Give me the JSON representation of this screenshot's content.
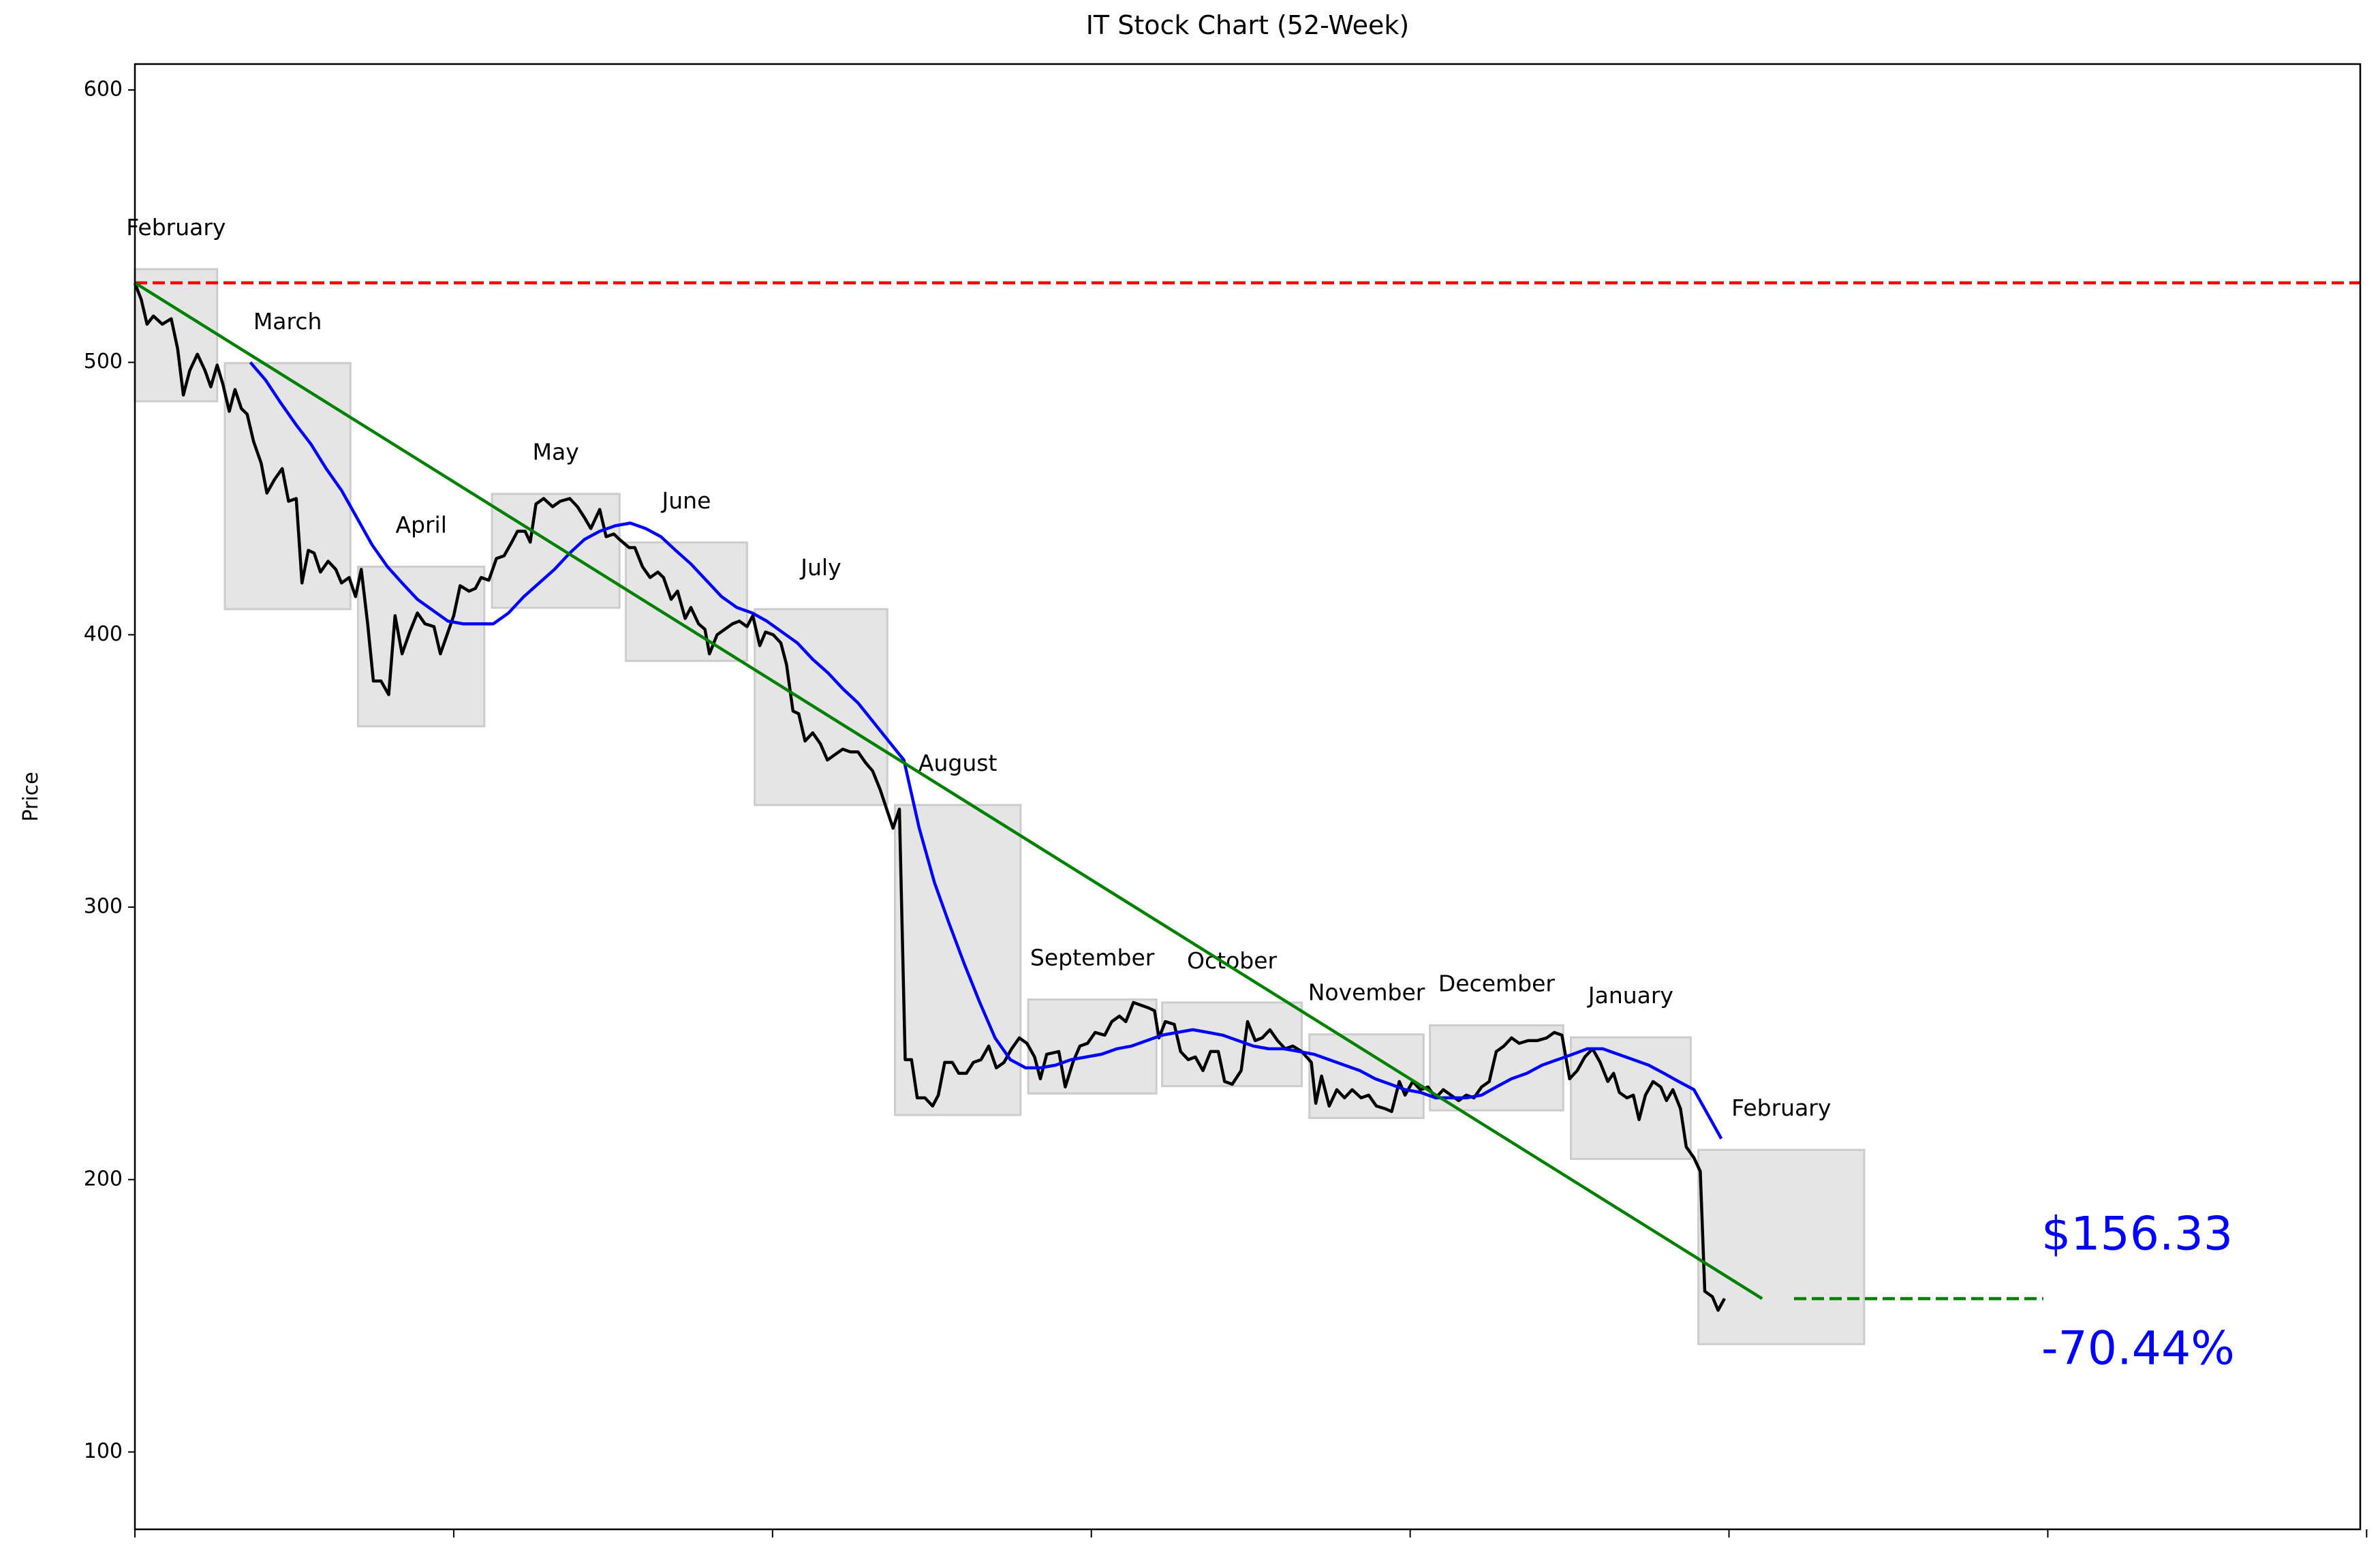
{
  "chart_data": {
    "type": "line",
    "title": "IT Stock Chart (52-Week)",
    "ylabel": "Price",
    "xlim": [
      0,
      349
    ],
    "ylim": [
      71.6,
      609.5
    ],
    "xticks": [
      0,
      50,
      100,
      150,
      200,
      250,
      300,
      350
    ],
    "yticks": [
      100,
      200,
      300,
      400,
      500,
      600
    ],
    "series": [
      {
        "color": "#000000",
        "x": [
          0,
          1,
          1.9,
          2.9,
          4.3,
          5.7,
          6.7,
          7.6,
          8.6,
          9.8,
          11,
          11.9,
          12.9,
          13.8,
          14.8,
          15.7,
          16.7,
          17.6,
          18.6,
          19.8,
          20.7,
          21.9,
          23.1,
          24.1,
          25.3,
          26.2,
          27.2,
          28.1,
          29.1,
          30.3,
          31.5,
          32.4,
          33.6,
          34.6,
          35.5,
          36.5,
          37.4,
          38.6,
          39.8,
          40.8,
          41.9,
          43.1,
          44.3,
          45.5,
          46.9,
          47.9,
          49.1,
          50,
          51,
          52.4,
          53.4,
          54.3,
          55.5,
          56.7,
          57.9,
          59.1,
          60,
          61.2,
          62,
          62.9,
          64.1,
          65.5,
          66.7,
          68.2,
          69.4,
          70.5,
          71.5,
          72.9,
          73.9,
          75.1,
          76,
          77.5,
          78.4,
          79.6,
          80.8,
          82,
          82.9,
          84.1,
          85.1,
          86.3,
          87.2,
          88.4,
          89.4,
          90.1,
          91.3,
          92.5,
          93.7,
          94.8,
          96,
          96.9,
          98,
          98.9,
          100.1,
          101.3,
          102.2,
          103.2,
          104.1,
          105.1,
          106.3,
          107.5,
          108.6,
          109.8,
          111,
          112.2,
          113.4,
          114.6,
          115.7,
          116.9,
          117.9,
          118.9,
          119.9,
          120.8,
          121.8,
          122.7,
          123.9,
          125.1,
          126,
          127,
          128.2,
          129.2,
          130.4,
          131.5,
          132.7,
          133.9,
          135.1,
          136.3,
          137.5,
          138.7,
          139.9,
          141.1,
          142,
          143,
          144.9,
          145.9,
          147.1,
          148.2,
          149.4,
          150.6,
          152.1,
          153.2,
          154.4,
          155.4,
          156.6,
          157.8,
          159,
          159.9,
          160.6,
          161.6,
          163,
          164,
          165.2,
          166.3,
          167.5,
          168.7,
          169.9,
          170.9,
          172.1,
          173.5,
          174.5,
          175.7,
          176.8,
          178,
          179.2,
          180.4,
          181.6,
          183,
          184.5,
          185.2,
          186.1,
          187.3,
          188.5,
          189.7,
          190.9,
          192.3,
          193.5,
          194.7,
          196.1,
          197.1,
          198.3,
          199.2,
          200.4,
          201.6,
          202.8,
          204,
          205.2,
          206.4,
          207.6,
          208.8,
          210,
          211.2,
          212.4,
          213.5,
          214.7,
          215.9,
          217.1,
          218.5,
          219.9,
          221.4,
          222.6,
          223.8,
          225,
          226.2,
          227.4,
          228.6,
          229.8,
          231,
          231.9,
          232.8,
          234,
          235,
          235.9,
          236.9,
          238.1,
          239.3,
          240.2,
          241.2,
          242.4,
          243.3,
          244.5,
          245.5,
          246.2,
          247.4,
          248.3,
          249.3
        ],
        "values": [
          529,
          523,
          514,
          517,
          514,
          516,
          505,
          488,
          497,
          503,
          497,
          491,
          499,
          492,
          482,
          490,
          483,
          481,
          471,
          463,
          452,
          457,
          461,
          449,
          450,
          419,
          431,
          430,
          423,
          427,
          424,
          419,
          421,
          414,
          424,
          404,
          383,
          383,
          378,
          407,
          393,
          401,
          408,
          404,
          403,
          393,
          401,
          407,
          418,
          416,
          417,
          421,
          420,
          428,
          429,
          434,
          438,
          438,
          434,
          448,
          450,
          447,
          449,
          450,
          447,
          443,
          439,
          446,
          436,
          437,
          435,
          432,
          432,
          425,
          421,
          423,
          421,
          413,
          416,
          406,
          410,
          404,
          402,
          393,
          400,
          402,
          404,
          405,
          403,
          407,
          396,
          401,
          400,
          397,
          389,
          372,
          371,
          361,
          364,
          360,
          354,
          356,
          358,
          357,
          357,
          353,
          350,
          343,
          336,
          329,
          336,
          244,
          244,
          230,
          230,
          227,
          231,
          243,
          243,
          239,
          239,
          243,
          244,
          249,
          241,
          243,
          248,
          252,
          250,
          245,
          237,
          246,
          247,
          234,
          243,
          249,
          250,
          254,
          253,
          258,
          260,
          258,
          265,
          264,
          263,
          262,
          252,
          258,
          257,
          247,
          244,
          245,
          240,
          247,
          247,
          236,
          235,
          240,
          258,
          251,
          252,
          255,
          251,
          248,
          249,
          247,
          243,
          228,
          238,
          227,
          233,
          230,
          233,
          230,
          231,
          227,
          226,
          225,
          236,
          231,
          236,
          233,
          234,
          230,
          233,
          231,
          229,
          231,
          230,
          234,
          236,
          247,
          249,
          252,
          250,
          251,
          251,
          252,
          254,
          253,
          237,
          240,
          245,
          248,
          243,
          236,
          239,
          232,
          230,
          231,
          222,
          231,
          236,
          234,
          229,
          233,
          226,
          212,
          208,
          203,
          159,
          157,
          152,
          156.33
        ]
      },
      {
        "color": "#0000ff",
        "x": [
          18.1,
          20.5,
          22.9,
          25.3,
          27.6,
          30,
          32.4,
          34.8,
          37.2,
          39.6,
          41.9,
          44.3,
          46.7,
          49.1,
          51.5,
          53.9,
          56.2,
          58.6,
          61,
          63.4,
          65.8,
          68.2,
          70.5,
          72.9,
          75.3,
          77.7,
          80.1,
          82.5,
          84.8,
          87.2,
          89.6,
          92,
          94.4,
          96.8,
          99.1,
          101.5,
          103.9,
          106.3,
          108.7,
          111.1,
          113.4,
          115.8,
          118.2,
          120.6,
          123,
          125.4,
          127.7,
          130.1,
          132.5,
          134.9,
          137.3,
          139.7,
          142,
          144.4,
          146.8,
          149.2,
          151.6,
          154,
          156.3,
          158.7,
          161.1,
          163.5,
          165.9,
          168.3,
          170.6,
          173,
          175.4,
          177.8,
          180.2,
          182.6,
          184.9,
          187.3,
          189.7,
          192.1,
          194.5,
          196.9,
          199.2,
          201.6,
          204,
          206.4,
          208.8,
          211.2,
          213.5,
          215.9,
          218.3,
          220.7,
          223.1,
          225.5,
          227.8,
          230.2,
          232.6,
          235,
          237.4,
          239.8,
          242.1,
          244.5,
          246.9,
          248.8
        ],
        "values": [
          500,
          493.5,
          485,
          477,
          470,
          461,
          453,
          443,
          433,
          425,
          419,
          413,
          409,
          405,
          404,
          404,
          404,
          408,
          414,
          419,
          424,
          430,
          435,
          438,
          440,
          441,
          439,
          436,
          431,
          426,
          420,
          414,
          410,
          408,
          405,
          401,
          397,
          391,
          386,
          380,
          375,
          368,
          361,
          354,
          329,
          309,
          294,
          279,
          265,
          252,
          244,
          241,
          241,
          242,
          244,
          245,
          246,
          248,
          249,
          251,
          253,
          254,
          255,
          254,
          253,
          251,
          249,
          248,
          248,
          247,
          246,
          244,
          242,
          240,
          237,
          235,
          233,
          232,
          230,
          230,
          230,
          231,
          234,
          237,
          239,
          242,
          244,
          246,
          248,
          248,
          246,
          244,
          242,
          239,
          236,
          233,
          223,
          215
        ]
      }
    ],
    "reference_line": {
      "y": 529.2,
      "color": "#ff0000"
    },
    "trend": {
      "color": "#008000",
      "x": [
        0,
        255.2
      ],
      "values": [
        529.2,
        156.3
      ]
    },
    "projection": {
      "color": "#008000",
      "x": [
        260.2,
        299.3
      ],
      "values": [
        156.3,
        156.3
      ]
    },
    "months": [
      {
        "label": "February",
        "x": [
          0,
          12.9
        ],
        "y": [
          485.7,
          534.2
        ]
      },
      {
        "label": "March",
        "x": [
          14.1,
          33.8
        ],
        "y": [
          409.4,
          499.7
        ]
      },
      {
        "label": "April",
        "x": [
          35,
          54.8
        ],
        "y": [
          366.4,
          425
        ]
      },
      {
        "label": "May",
        "x": [
          56,
          76
        ],
        "y": [
          409.9,
          451.7
        ]
      },
      {
        "label": "June",
        "x": [
          77,
          96
        ],
        "y": [
          390.4,
          433.9
        ]
      },
      {
        "label": "July",
        "x": [
          97.2,
          118
        ],
        "y": [
          337.5,
          409.4
        ]
      },
      {
        "label": "August",
        "x": [
          119.2,
          138.9
        ],
        "y": [
          223.7,
          337.5
        ]
      },
      {
        "label": "September",
        "x": [
          140.1,
          160.2
        ],
        "y": [
          231.6,
          266.1
        ]
      },
      {
        "label": "October",
        "x": [
          161.1,
          183
        ],
        "y": [
          234.3,
          265
        ]
      },
      {
        "label": "November",
        "x": [
          184.2,
          202.1
        ],
        "y": [
          222.6,
          253.3
        ]
      },
      {
        "label": "December",
        "x": [
          203.1,
          224
        ],
        "y": [
          225.4,
          256.6
        ]
      },
      {
        "label": "January",
        "x": [
          225.2,
          244
        ],
        "y": [
          207.6,
          252.2
        ]
      },
      {
        "label": "February",
        "x": [
          245.2,
          271.2
        ],
        "y": [
          139.6,
          210.9
        ]
      }
    ],
    "annotations": {
      "price": "$156.33",
      "change": "-70.44%"
    }
  }
}
